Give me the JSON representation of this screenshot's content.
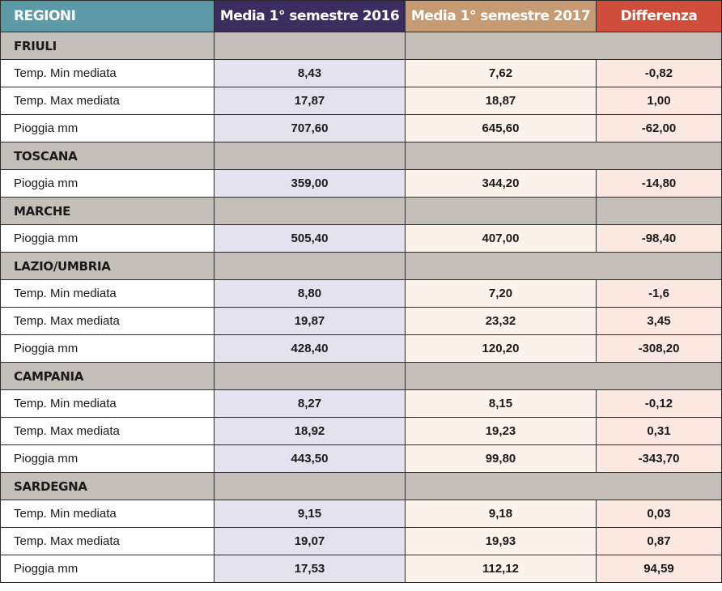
{
  "headers": {
    "region": "REGIONI",
    "y2016": "Media 1° semestre 2016",
    "y2017": "Media 1° semestre 2017",
    "diff": "Differenza"
  },
  "regions": [
    {
      "name": "FRIULI",
      "merge_diff": true,
      "rows": [
        {
          "label": "Temp. Min mediata",
          "v2016": "8,43",
          "v2017": "7,62",
          "diff": "-0,82"
        },
        {
          "label": "Temp. Max mediata",
          "v2016": "17,87",
          "v2017": "18,87",
          "diff": "1,00"
        },
        {
          "label": "Pioggia mm",
          "v2016": "707,60",
          "v2017": "645,60",
          "diff": "-62,00"
        }
      ]
    },
    {
      "name": "TOSCANA",
      "merge_diff": true,
      "rows": [
        {
          "label": "Pioggia mm",
          "v2016": "359,00",
          "v2017": "344,20",
          "diff": "-14,80"
        }
      ]
    },
    {
      "name": "MARCHE",
      "merge_diff": false,
      "rows": [
        {
          "label": "Pioggia mm",
          "v2016": "505,40",
          "v2017": "407,00",
          "diff": "-98,40"
        }
      ]
    },
    {
      "name": "LAZIO/UMBRIA",
      "merge_diff": true,
      "rows": [
        {
          "label": "Temp. Min mediata",
          "v2016": "8,80",
          "v2017": "7,20",
          "diff": "-1,6"
        },
        {
          "label": "Temp. Max mediata",
          "v2016": "19,87",
          "v2017": "23,32",
          "diff": "3,45"
        },
        {
          "label": "Pioggia mm",
          "v2016": "428,40",
          "v2017": "120,20",
          "diff": "-308,20"
        }
      ]
    },
    {
      "name": "CAMPANIA",
      "merge_diff": true,
      "rows": [
        {
          "label": "Temp. Min mediata",
          "v2016": "8,27",
          "v2017": "8,15",
          "diff": "-0,12"
        },
        {
          "label": "Temp. Max mediata",
          "v2016": "18,92",
          "v2017": "19,23",
          "diff": "0,31"
        },
        {
          "label": "Pioggia mm",
          "v2016": "443,50",
          "v2017": "99,80",
          "diff": "-343,70"
        }
      ]
    },
    {
      "name": "SARDEGNA",
      "merge_diff": true,
      "rows": [
        {
          "label": "Temp. Min mediata",
          "v2016": "9,15",
          "v2017": "9,18",
          "diff": "0,03"
        },
        {
          "label": "Temp. Max mediata",
          "v2016": "19,07",
          "v2017": "19,93",
          "diff": "0,87"
        },
        {
          "label": "Pioggia mm",
          "v2016": "17,53",
          "v2017": "112,12",
          "diff": "94,59"
        }
      ]
    }
  ],
  "colors": {
    "header_region": "#5b9aa6",
    "header_2016": "#3b2d60",
    "header_2017": "#c69b74",
    "header_diff": "#cf4d3a"
  }
}
